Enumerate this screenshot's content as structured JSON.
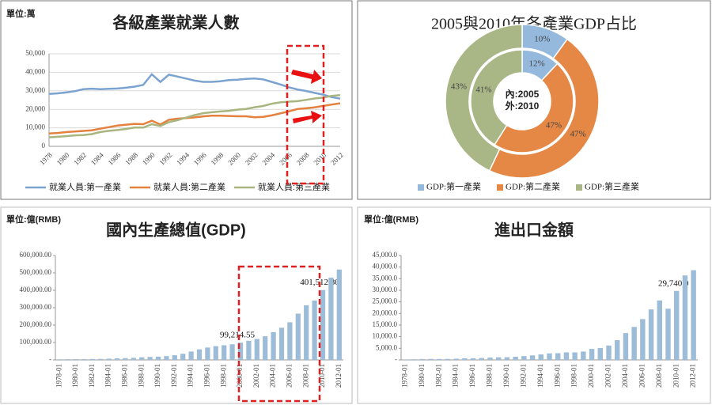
{
  "chart_data": [
    {
      "type": "line",
      "title": "各級產業就業人數",
      "unit": "單位:萬",
      "categories": [
        "1978",
        null,
        "1980",
        null,
        "1982",
        null,
        "1984",
        null,
        "1986",
        null,
        "1988",
        null,
        "1990",
        null,
        "1992",
        null,
        "1994",
        null,
        "1996",
        null,
        "1998",
        null,
        "2000",
        null,
        "2002",
        null,
        "2004",
        null,
        "2006",
        null,
        "2008",
        null,
        "2010",
        null,
        "2012"
      ],
      "series": [
        {
          "name": "就業人員:第一產業",
          "color": "#7ba3cf",
          "values": [
            28318,
            28634,
            29122,
            29777,
            30859,
            31151,
            30868,
            31130,
            31254,
            31663,
            32249,
            33225,
            38914,
            34800,
            38699,
            37680,
            36628,
            35530,
            34820,
            34840,
            35177,
            35768,
            36043,
            36399,
            36640,
            36204,
            34830,
            33442,
            31941,
            30731,
            29923,
            28890,
            27931,
            26594,
            25773
          ]
        },
        {
          "name": "就業人員:第二產業",
          "color": "#e4813e",
          "values": [
            6945,
            7214,
            7707,
            8003,
            8346,
            8679,
            9590,
            10384,
            11216,
            11726,
            12152,
            11976,
            13856,
            11800,
            14355,
            14965,
            15312,
            15655,
            16203,
            16547,
            16600,
            16421,
            16219,
            16234,
            15682,
            15927,
            16709,
            17766,
            18894,
            20186,
            20553,
            21080,
            21842,
            22544,
            23241
          ]
        },
        {
          "name": "就業人員:第三產業",
          "color": "#a8b57f",
          "values": [
            4890,
            5177,
            5532,
            5945,
            6090,
            6606,
            7739,
            8359,
            8811,
            9395,
            10110,
            10129,
            11979,
            11000,
            13098,
            14163,
            15515,
            16880,
            17927,
            18432,
            18860,
            19205,
            19823,
            20228,
            21090,
            21809,
            23011,
            23771,
            24143,
            24404,
            25087,
            25857,
            26332,
            27282,
            27690
          ]
        }
      ],
      "ylim": [
        0,
        50000
      ],
      "yticks": [
        0,
        {
          "value": 10000,
          "label": "10,000"
        },
        {
          "value": 20000,
          "label": "20,000"
        },
        {
          "value": 30000,
          "label": "30,000"
        },
        {
          "value": 40000,
          "label": "40,000"
        },
        {
          "value": 50000,
          "label": "50,000"
        }
      ],
      "grid": true,
      "legend": "bottom"
    },
    {
      "type": "donut",
      "title": "2005與2010年各產業GDP占比",
      "categories": [
        "GDP:第一產業",
        "GDP:第二產業",
        "GDP:第三產業"
      ],
      "colors": [
        "#95b9dd",
        "#e58745",
        "#a9b787"
      ],
      "series": [
        {
          "name": "內:2005",
          "values": [
            12,
            47,
            41
          ],
          "value_labels": [
            "12%",
            "47%",
            "41%"
          ]
        },
        {
          "name": "外:2010",
          "values": [
            10,
            47,
            43
          ],
          "value_labels": [
            "10%",
            "47%",
            "43%"
          ]
        }
      ],
      "legend": "bottom"
    },
    {
      "type": "bar",
      "title": "國內生產總值(GDP)",
      "unit": "單位:億(RMB)",
      "color": "#9dbcd8",
      "categories": [
        "1978-01",
        null,
        "1980-01",
        null,
        "1982-01",
        null,
        "1984-01",
        null,
        "1986-01",
        null,
        "1988-01",
        null,
        "1990-01",
        null,
        "1992-01",
        null,
        "1994-01",
        null,
        "1996-01",
        null,
        "1998-01",
        null,
        "2000-01",
        null,
        "2002-01",
        null,
        "2004-01",
        null,
        "2006-01",
        null,
        "2008-01",
        null,
        "2010-01",
        null,
        "2012-01"
      ],
      "values": [
        3645,
        4063,
        4546,
        4892,
        5323,
        5963,
        7208,
        9016,
        10275,
        12059,
        15043,
        16992,
        18668,
        21781,
        26923,
        35334,
        48198,
        60794,
        71177,
        78973,
        84402,
        89677,
        99214.55,
        109655,
        120333,
        135823,
        159878,
        184937,
        216314,
        265810,
        314045,
        340903,
        401512.8,
        473104,
        519470
      ],
      "value_labels": [
        null,
        null,
        null,
        null,
        null,
        null,
        null,
        null,
        null,
        null,
        null,
        null,
        null,
        null,
        null,
        null,
        null,
        null,
        null,
        null,
        null,
        null,
        "99,214.55",
        null,
        null,
        null,
        null,
        null,
        null,
        null,
        null,
        null,
        "401,512.80",
        null,
        null
      ],
      "ylim": [
        0,
        600000
      ],
      "yticks": [
        {
          "value": 0,
          "label": "-"
        },
        {
          "value": 100000,
          "label": "100,000.00"
        },
        {
          "value": 200000,
          "label": "200,000.00"
        },
        {
          "value": 300000,
          "label": "300,000.00"
        },
        {
          "value": 400000,
          "label": "400,000.00"
        },
        {
          "value": 500000,
          "label": "500,000.00"
        },
        {
          "value": 600000,
          "label": "600,000.00"
        }
      ],
      "grid": false
    },
    {
      "type": "bar",
      "title": "進出口金額",
      "unit": "單位:億(RMB)",
      "color": "#9dbcd8",
      "categories": [
        "1978-01",
        null,
        "1980-01",
        null,
        "1982-01",
        null,
        "1984-01",
        null,
        "1986-01",
        null,
        "1988-01",
        null,
        "1990-01",
        null,
        "1992-01",
        null,
        "1994-01",
        null,
        "1996-01",
        null,
        "1998-01",
        null,
        "2000-01",
        null,
        "2002-01",
        null,
        "2004-01",
        null,
        "2006-01",
        null,
        "2008-01",
        null,
        "2010-01",
        null,
        "2012-01"
      ],
      "values": [
        206,
        293,
        381,
        440,
        416,
        436,
        535,
        696,
        738,
        827,
        1028,
        1117,
        1154,
        1357,
        1655,
        1957,
        2366,
        2809,
        2899,
        3252,
        3240,
        3606,
        4743,
        5097,
        6208,
        8510,
        11546,
        14219,
        17604,
        21766,
        25633,
        22075,
        29740,
        36419,
        38671
      ],
      "value_labels": [
        null,
        null,
        null,
        null,
        null,
        null,
        null,
        null,
        null,
        null,
        null,
        null,
        null,
        null,
        null,
        null,
        null,
        null,
        null,
        null,
        null,
        null,
        null,
        null,
        null,
        null,
        null,
        null,
        null,
        null,
        null,
        null,
        "29,740.0",
        null,
        null
      ],
      "ylim": [
        0,
        45000
      ],
      "yticks": [
        {
          "value": 0,
          "label": "-"
        },
        {
          "value": 5000,
          "label": "5,000.0"
        },
        {
          "value": 10000,
          "label": "10,000.0"
        },
        {
          "value": 15000,
          "label": "15,000.0"
        },
        {
          "value": 20000,
          "label": "20,000.0"
        },
        {
          "value": 25000,
          "label": "25,000.0"
        },
        {
          "value": 30000,
          "label": "30,000.0"
        },
        {
          "value": 35000,
          "label": "35,000.0"
        },
        {
          "value": 40000,
          "label": "40,000.0"
        },
        {
          "value": 45000,
          "label": "45,000.0"
        }
      ],
      "grid": false
    }
  ]
}
